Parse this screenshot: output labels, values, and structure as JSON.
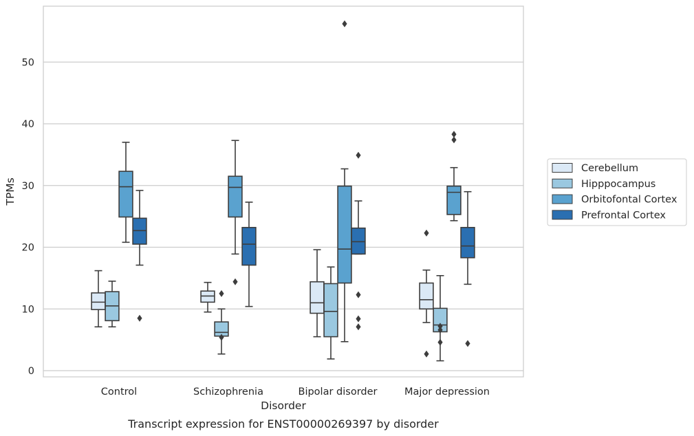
{
  "chart_data": {
    "type": "box",
    "title": "",
    "caption": "Transcript expression for ENST00000269397 by disorder",
    "xlabel": "Disorder",
    "ylabel": "TPMs",
    "ylim": [
      -1,
      59
    ],
    "yticks": [
      0,
      10,
      20,
      30,
      40,
      50
    ],
    "grid": "horizontal",
    "legend_position": "right",
    "categories": [
      "Control",
      "Schizophrenia",
      "Bipolar disorder",
      "Major depression"
    ],
    "series": [
      {
        "name": "Cerebellum",
        "color": "#dbe9f6",
        "boxes": [
          {
            "whisker_low": 7.1,
            "q1": 9.9,
            "median": 11.1,
            "q3": 12.6,
            "whisker_high": 16.2,
            "outliers": []
          },
          {
            "whisker_low": 9.5,
            "q1": 11.1,
            "median": 12.1,
            "q3": 12.9,
            "whisker_high": 14.3,
            "outliers": []
          },
          {
            "whisker_low": 5.5,
            "q1": 9.3,
            "median": 11.0,
            "q3": 14.4,
            "whisker_high": 19.6,
            "outliers": []
          },
          {
            "whisker_low": 7.8,
            "q1": 10.0,
            "median": 11.5,
            "q3": 14.2,
            "whisker_high": 16.3,
            "outliers": [
              2.7,
              22.3
            ]
          }
        ]
      },
      {
        "name": "Hipppocampus",
        "color": "#9ac8e0",
        "boxes": [
          {
            "whisker_low": 7.1,
            "q1": 8.1,
            "median": 10.5,
            "q3": 12.8,
            "whisker_high": 14.5,
            "outliers": []
          },
          {
            "whisker_low": 2.7,
            "q1": 5.6,
            "median": 6.2,
            "q3": 7.9,
            "whisker_high": 10.0,
            "outliers": [
              5.4,
              12.5
            ]
          },
          {
            "whisker_low": 1.9,
            "q1": 5.5,
            "median": 9.6,
            "q3": 14.1,
            "whisker_high": 16.8,
            "outliers": []
          },
          {
            "whisker_low": 1.6,
            "q1": 6.3,
            "median": 7.4,
            "q3": 10.1,
            "whisker_high": 15.4,
            "outliers": [
              4.6,
              6.6,
              7.2
            ]
          }
        ]
      },
      {
        "name": "Orbitofontal Cortex",
        "color": "#5aa2cf",
        "boxes": [
          {
            "whisker_low": 20.8,
            "q1": 24.9,
            "median": 29.8,
            "q3": 32.3,
            "whisker_high": 37.0,
            "outliers": []
          },
          {
            "whisker_low": 18.9,
            "q1": 24.9,
            "median": 29.7,
            "q3": 31.5,
            "whisker_high": 37.3,
            "outliers": [
              14.4
            ]
          },
          {
            "whisker_low": 4.7,
            "q1": 14.2,
            "median": 19.7,
            "q3": 29.9,
            "whisker_high": 32.7,
            "outliers": [
              56.2
            ]
          },
          {
            "whisker_low": 24.3,
            "q1": 25.3,
            "median": 28.9,
            "q3": 29.9,
            "whisker_high": 32.9,
            "outliers": [
              37.4,
              38.3
            ]
          }
        ]
      },
      {
        "name": "Prefrontal Cortex",
        "color": "#2a6fb1",
        "boxes": [
          {
            "whisker_low": 17.1,
            "q1": 20.5,
            "median": 22.7,
            "q3": 24.7,
            "whisker_high": 29.2,
            "outliers": [
              8.5
            ]
          },
          {
            "whisker_low": 10.4,
            "q1": 17.1,
            "median": 20.5,
            "q3": 23.2,
            "whisker_high": 27.3,
            "outliers": []
          },
          {
            "whisker_low": 18.9,
            "q1": 18.9,
            "median": 20.9,
            "q3": 23.1,
            "whisker_high": 27.5,
            "outliers": [
              7.1,
              8.4,
              12.3,
              34.9
            ]
          },
          {
            "whisker_low": 14.0,
            "q1": 18.3,
            "median": 20.2,
            "q3": 23.2,
            "whisker_high": 29.0,
            "outliers": [
              4.4
            ]
          }
        ]
      }
    ]
  }
}
